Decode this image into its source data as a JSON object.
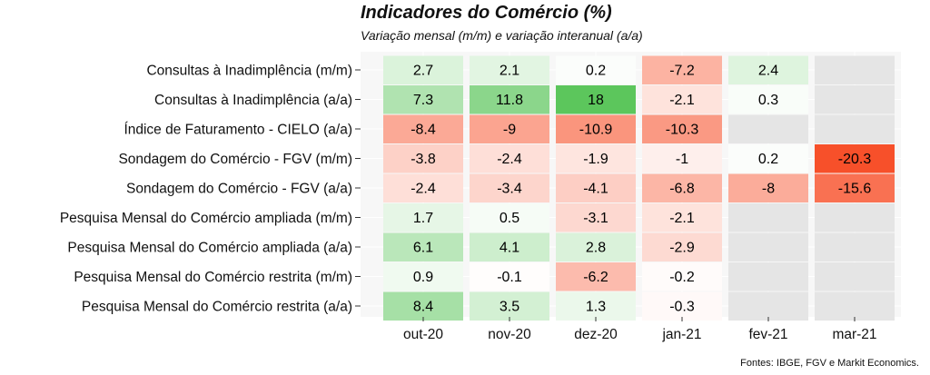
{
  "chart_data": {
    "type": "heatmap",
    "title": "Indicadores do Comércio (%)",
    "subtitle": "Variação mensal (m/m) e  variação interanual (a/a)",
    "source": "Fontes: IBGE, FGV e Markit Economics.",
    "columns": [
      "out-20",
      "nov-20",
      "dez-20",
      "jan-21",
      "fev-21",
      "mar-21"
    ],
    "rows": [
      "Consultas à Inadimplência (m/m)",
      "Consultas à Inadimplência (a/a)",
      "Índice de Faturamento - CIELO (a/a)",
      "Sondagem do Comércio - FGV (m/m)",
      "Sondagem do Comércio - FGV (a/a)",
      "Pesquisa Mensal do Comércio ampliada (m/m)",
      "Pesquisa Mensal do Comércio ampliada (a/a)",
      "Pesquisa Mensal do Comércio restrita (m/m)",
      "Pesquisa Mensal do Comércio restrita (a/a)"
    ],
    "values": [
      [
        2.7,
        2.1,
        0.2,
        -7.2,
        2.4,
        null
      ],
      [
        7.3,
        11.8,
        18,
        -2.1,
        0.3,
        null
      ],
      [
        -8.4,
        -9,
        -10.9,
        -10.3,
        null,
        null
      ],
      [
        -3.8,
        -2.4,
        -1.9,
        -1,
        0.2,
        -20.3
      ],
      [
        -2.4,
        -3.4,
        -4.1,
        -6.8,
        -8,
        -15.6
      ],
      [
        1.7,
        0.5,
        -3.1,
        -2.1,
        null,
        null
      ],
      [
        6.1,
        4.1,
        2.8,
        -2.9,
        null,
        null
      ],
      [
        0.9,
        -0.1,
        -6.2,
        -0.2,
        null,
        null
      ],
      [
        8.4,
        3.5,
        1.3,
        -0.3,
        null,
        null
      ]
    ],
    "colors": {
      "positive_max": "#5cc65c",
      "negative_max": "#f7502a",
      "neutral": "#ffffff",
      "missing": "#e5e5e5",
      "panel_background": "#ebebeb"
    },
    "color_scale_max_positive": 18,
    "color_scale_max_negative": 20.3,
    "grid": true
  }
}
